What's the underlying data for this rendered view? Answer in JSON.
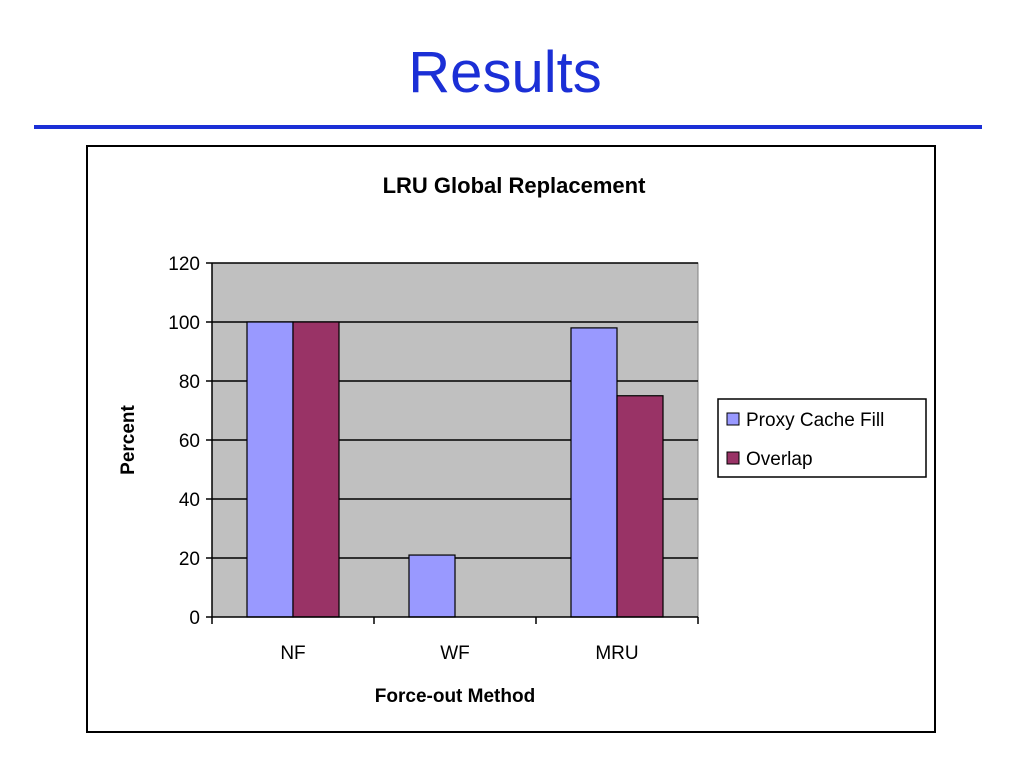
{
  "slide": {
    "title": "Results"
  },
  "colors": {
    "title_blue": "#1b2fd6",
    "plot_bg": "#c0c0c0",
    "series_1": "#9999ff",
    "series_2": "#993366"
  },
  "chart_data": {
    "type": "bar",
    "title": "LRU Global Replacement",
    "xlabel": "Force-out Method",
    "ylabel": "Percent",
    "categories": [
      "NF",
      "WF",
      "MRU"
    ],
    "series": [
      {
        "name": "Proxy Cache Fill",
        "values": [
          100,
          21,
          98
        ]
      },
      {
        "name": "Overlap",
        "values": [
          100,
          0,
          75
        ]
      }
    ],
    "ylim": [
      0,
      120
    ],
    "yticks": [
      0,
      20,
      40,
      60,
      80,
      100,
      120
    ],
    "grid": true,
    "legend": "right"
  }
}
